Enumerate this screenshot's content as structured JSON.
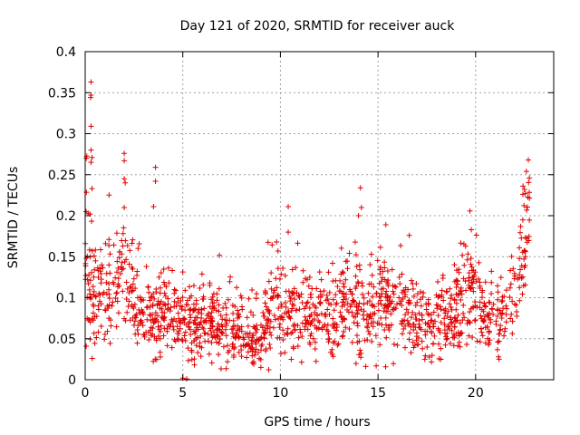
{
  "chart_data": {
    "type": "scatter",
    "title": "Day 121 of 2020, SRMTID for receiver auck",
    "xlabel": "GPS time / hours",
    "ylabel": "SRMTID / TECUs",
    "xlim": [
      0,
      24
    ],
    "ylim": [
      0,
      0.4
    ],
    "x_ticks": [
      0,
      5,
      10,
      15,
      20
    ],
    "x_tick_labels": [
      "0",
      "5",
      "10",
      "15",
      "20"
    ],
    "y_ticks": [
      0,
      0.05,
      0.1,
      0.15,
      0.2,
      0.25,
      0.3,
      0.35,
      0.4
    ],
    "y_tick_labels": [
      "0",
      "0.05",
      "0.1",
      "0.15",
      "0.2",
      "0.25",
      "0.3",
      "0.35",
      "0.4"
    ],
    "grid": true,
    "marker": "+",
    "marker_color": "#e00000",
    "envelope": {
      "description": "approximate mean and spread of the dense point cloud (hours, TECU)",
      "x": [
        0.0,
        0.5,
        1.0,
        1.5,
        2.0,
        2.5,
        3.0,
        3.5,
        4.0,
        4.5,
        5.0,
        5.5,
        6.0,
        6.5,
        7.0,
        7.5,
        8.0,
        8.5,
        9.0,
        9.5,
        10.0,
        10.5,
        11.0,
        11.5,
        12.0,
        12.5,
        13.0,
        13.5,
        14.0,
        14.5,
        15.0,
        15.5,
        16.0,
        16.5,
        17.0,
        17.5,
        18.0,
        18.5,
        19.0,
        19.5,
        20.0,
        20.5,
        21.0,
        21.5,
        22.0,
        22.5,
        22.8
      ],
      "mean": [
        0.12,
        0.09,
        0.1,
        0.12,
        0.13,
        0.1,
        0.08,
        0.08,
        0.075,
        0.075,
        0.07,
        0.06,
        0.065,
        0.065,
        0.06,
        0.06,
        0.05,
        0.045,
        0.05,
        0.085,
        0.08,
        0.075,
        0.075,
        0.07,
        0.07,
        0.075,
        0.085,
        0.09,
        0.085,
        0.075,
        0.085,
        0.09,
        0.09,
        0.08,
        0.065,
        0.055,
        0.06,
        0.07,
        0.085,
        0.09,
        0.11,
        0.075,
        0.07,
        0.075,
        0.09,
        0.17,
        0.2
      ],
      "spread": [
        0.06,
        0.04,
        0.04,
        0.045,
        0.05,
        0.04,
        0.035,
        0.035,
        0.03,
        0.03,
        0.035,
        0.03,
        0.03,
        0.03,
        0.03,
        0.03,
        0.025,
        0.025,
        0.03,
        0.04,
        0.035,
        0.03,
        0.035,
        0.03,
        0.03,
        0.035,
        0.035,
        0.04,
        0.04,
        0.035,
        0.04,
        0.04,
        0.04,
        0.035,
        0.03,
        0.025,
        0.03,
        0.03,
        0.035,
        0.04,
        0.04,
        0.03,
        0.035,
        0.03,
        0.04,
        0.05,
        0.05
      ]
    },
    "sample_count": 1500,
    "outliers": [
      {
        "x": 0.3,
        "y": 0.363
      },
      {
        "x": 0.3,
        "y": 0.347
      },
      {
        "x": 0.28,
        "y": 0.344
      },
      {
        "x": 0.3,
        "y": 0.309
      },
      {
        "x": 0.3,
        "y": 0.28
      },
      {
        "x": 0.35,
        "y": 0.271
      },
      {
        "x": 0.3,
        "y": 0.265
      },
      {
        "x": 0.35,
        "y": 0.233
      },
      {
        "x": 0.05,
        "y": 0.205
      },
      {
        "x": 0.15,
        "y": 0.203
      },
      {
        "x": 2.0,
        "y": 0.276
      },
      {
        "x": 2.0,
        "y": 0.267
      },
      {
        "x": 2.0,
        "y": 0.245
      },
      {
        "x": 2.05,
        "y": 0.24
      },
      {
        "x": 2.0,
        "y": 0.21
      },
      {
        "x": 3.6,
        "y": 0.259
      },
      {
        "x": 3.6,
        "y": 0.242
      },
      {
        "x": 3.5,
        "y": 0.211
      },
      {
        "x": 5.0,
        "y": 0.002
      },
      {
        "x": 5.2,
        "y": 0.001
      },
      {
        "x": 10.4,
        "y": 0.211
      },
      {
        "x": 10.4,
        "y": 0.18
      },
      {
        "x": 14.1,
        "y": 0.234
      },
      {
        "x": 14.15,
        "y": 0.21
      },
      {
        "x": 14.0,
        "y": 0.2
      },
      {
        "x": 15.4,
        "y": 0.189
      },
      {
        "x": 16.6,
        "y": 0.176
      },
      {
        "x": 22.7,
        "y": 0.268
      },
      {
        "x": 22.6,
        "y": 0.254
      },
      {
        "x": 22.5,
        "y": 0.232
      },
      {
        "x": 22.75,
        "y": 0.246
      },
      {
        "x": 21.2,
        "y": 0.025
      },
      {
        "x": 9.0,
        "y": 0.015
      }
    ]
  }
}
